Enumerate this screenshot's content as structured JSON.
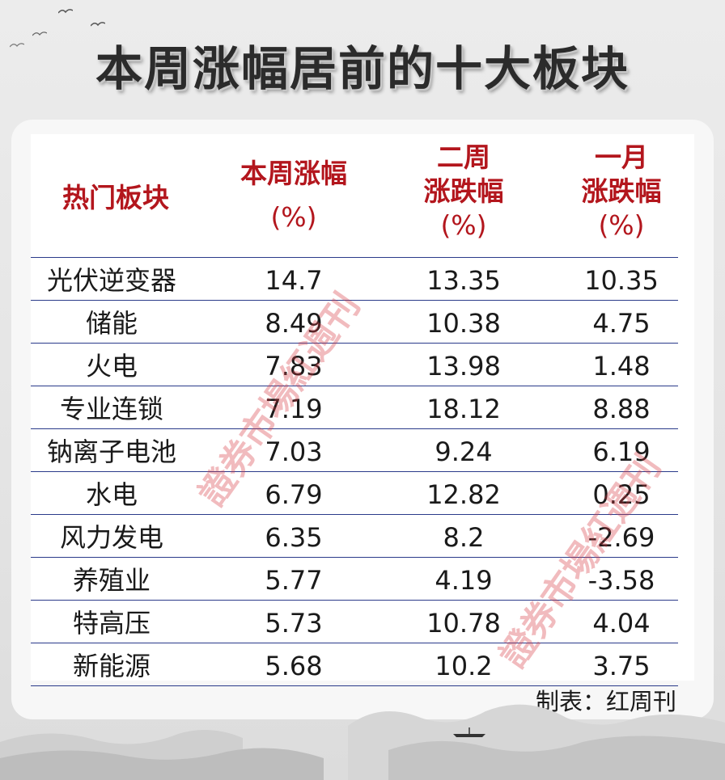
{
  "title": "本周涨幅居前的十大板块",
  "headers": {
    "col0": "热门板块",
    "col1_line1": "本周涨幅",
    "col1_line2": "(%)",
    "col2_line1": "二周",
    "col2_line2": "涨跌幅",
    "col2_line3": "(%)",
    "col3_line1": "一月",
    "col3_line2": "涨跌幅",
    "col3_line3": "(%)"
  },
  "rows": [
    {
      "sector": "光伏逆变器",
      "week": "14.7",
      "two_week": "13.35",
      "month": "10.35"
    },
    {
      "sector": "储能",
      "week": "8.49",
      "two_week": "10.38",
      "month": "4.75"
    },
    {
      "sector": "火电",
      "week": "7.83",
      "two_week": "13.98",
      "month": "1.48"
    },
    {
      "sector": "专业连锁",
      "week": "7.19",
      "two_week": "18.12",
      "month": "8.88"
    },
    {
      "sector": "钠离子电池",
      "week": "7.03",
      "two_week": "9.24",
      "month": "6.19"
    },
    {
      "sector": "水电",
      "week": "6.79",
      "two_week": "12.82",
      "month": "0.25"
    },
    {
      "sector": "风力发电",
      "week": "6.35",
      "two_week": "8.2",
      "month": "-2.69"
    },
    {
      "sector": "养殖业",
      "week": "5.77",
      "two_week": "4.19",
      "month": "-3.58"
    },
    {
      "sector": "特高压",
      "week": "5.73",
      "two_week": "10.78",
      "month": "4.04"
    },
    {
      "sector": "新能源",
      "week": "5.68",
      "two_week": "10.2",
      "month": "3.75"
    }
  ],
  "footer": "制表：红周刊",
  "watermark": "證券市場紅週刊",
  "colors": {
    "header_red": "#b3161d",
    "rule_blue": "#2a3a8a",
    "watermark": "#d63c46"
  }
}
